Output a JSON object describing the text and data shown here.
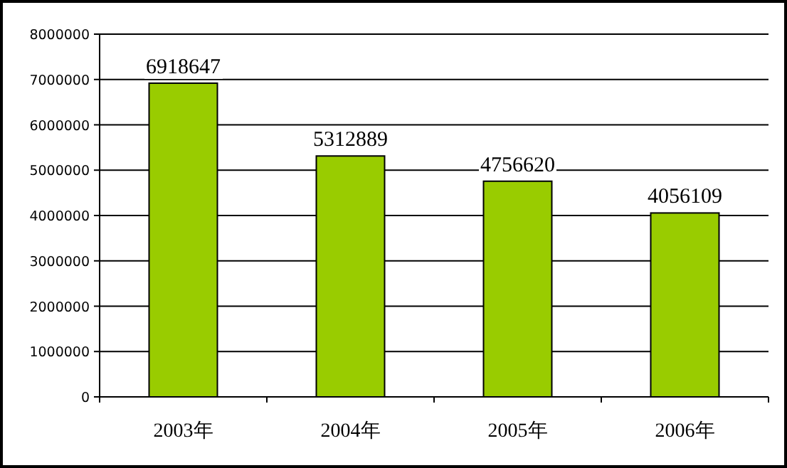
{
  "chart_data": {
    "type": "bar",
    "categories": [
      "2003年",
      "2004年",
      "2005年",
      "2006年"
    ],
    "values": [
      6918647,
      5312889,
      4756620,
      4056109
    ],
    "color": "#99cc00",
    "ylim": [
      0,
      8000000
    ],
    "yticks": [
      0,
      1000000,
      2000000,
      3000000,
      4000000,
      5000000,
      6000000,
      7000000,
      8000000
    ],
    "grid": "y",
    "data_labels": true
  }
}
